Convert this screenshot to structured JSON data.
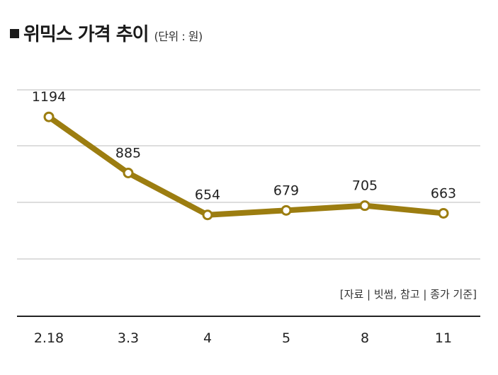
{
  "header": {
    "title": "위믹스 가격 추이",
    "unit": "(단위 : 원)"
  },
  "source_note": "[자료 | 빗썸, 참고 | 종가 기준]",
  "colors": {
    "line": "#9c7d10",
    "point_fill": "#ffffff",
    "grid": "#bbbbbb",
    "axis": "#222222"
  },
  "chart_data": {
    "type": "line",
    "title": "위믹스 가격 추이",
    "categories": [
      "2.18",
      "3.3",
      "4",
      "5",
      "8",
      "11"
    ],
    "series": [
      {
        "values": [
          1194,
          885,
          654,
          679,
          705,
          663
        ]
      }
    ],
    "data_labels": [
      "1194",
      "885",
      "654",
      "679",
      "705",
      "663"
    ],
    "ylim": [
      400,
      1340
    ],
    "grid": "horizontal",
    "xlabel": "",
    "ylabel": ""
  }
}
